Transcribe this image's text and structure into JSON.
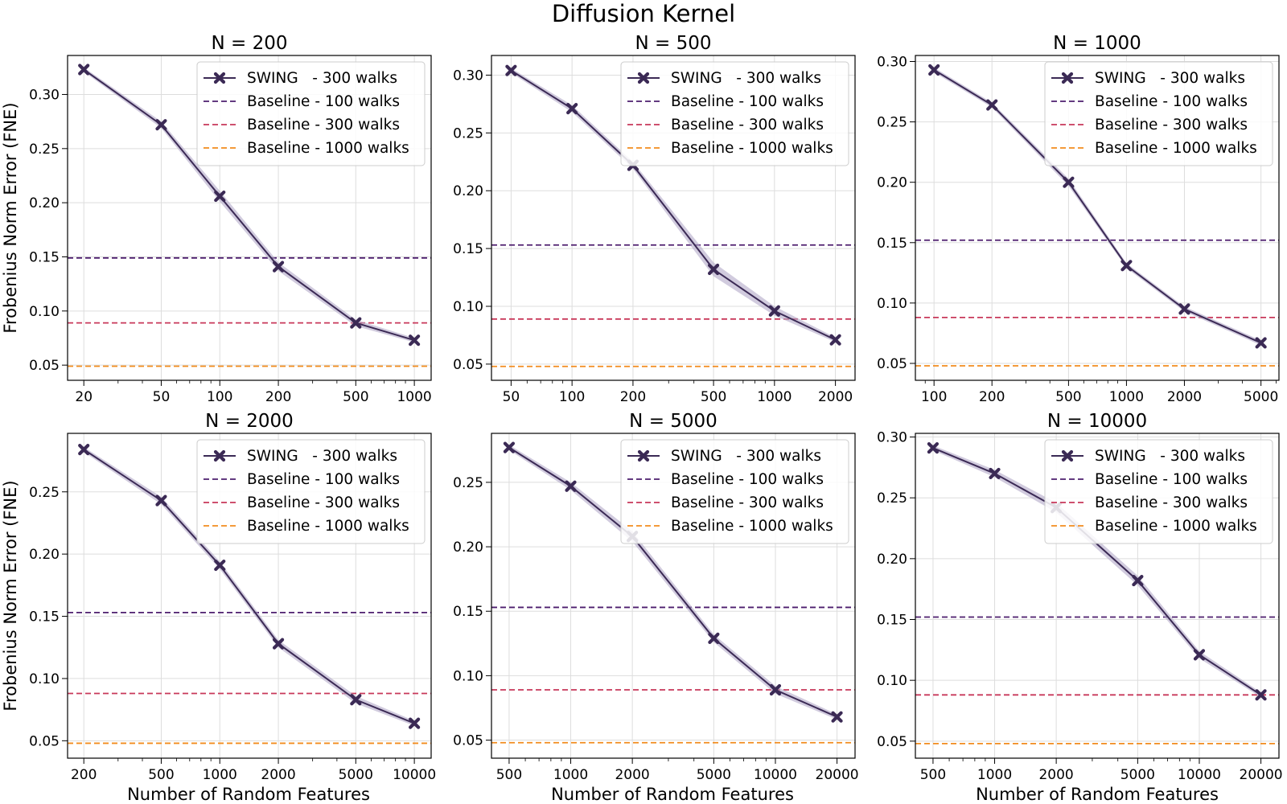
{
  "figure": {
    "title": "Diffusion Kernel",
    "ylabel": "Frobenius Norm Error (FNE)",
    "xlabel": "Number of Random Features"
  },
  "colors": {
    "swing": "#3b2a55",
    "band": "#b3a9c8",
    "baseline_100": "#4d1e6e",
    "baseline_300": "#c8385a",
    "baseline_1000": "#f28c1e",
    "grid": "#dddddd"
  },
  "legend": [
    "SWING   - 300 walks",
    "Baseline - 100 walks",
    "Baseline - 300 walks",
    "Baseline - 1000 walks"
  ],
  "chart_data": [
    {
      "type": "line",
      "title": "N = 200",
      "x": [
        20,
        50,
        100,
        200,
        500,
        1000
      ],
      "xticks": [
        20,
        50,
        100,
        200,
        500,
        1000
      ],
      "xlim": [
        16.5,
        1220
      ],
      "xscale": "log",
      "ylim": [
        0.036,
        0.336
      ],
      "yticks": [
        0.05,
        0.1,
        0.15,
        0.2,
        0.25,
        0.3
      ],
      "series": [
        {
          "name": "SWING   - 300 walks",
          "values": [
            0.323,
            0.272,
            0.206,
            0.141,
            0.089,
            0.073
          ],
          "band": [
            0.002,
            0.003,
            0.005,
            0.004,
            0.003,
            0.002
          ]
        },
        {
          "name": "Baseline - 100 walks",
          "constant": 0.149
        },
        {
          "name": "Baseline - 300 walks",
          "constant": 0.089
        },
        {
          "name": "Baseline - 1000 walks",
          "constant": 0.049
        }
      ]
    },
    {
      "type": "line",
      "title": "N = 500",
      "x": [
        50,
        100,
        200,
        500,
        1000,
        2000
      ],
      "xticks": [
        50,
        100,
        200,
        500,
        1000,
        2000
      ],
      "xlim": [
        40,
        2500
      ],
      "xscale": "log",
      "ylim": [
        0.036,
        0.317
      ],
      "yticks": [
        0.05,
        0.1,
        0.15,
        0.2,
        0.25,
        0.3
      ],
      "series": [
        {
          "name": "SWING   - 300 walks",
          "values": [
            0.304,
            0.271,
            0.222,
            0.132,
            0.096,
            0.071
          ],
          "band": [
            0.002,
            0.003,
            0.003,
            0.006,
            0.004,
            0.002
          ]
        },
        {
          "name": "Baseline - 100 walks",
          "constant": 0.153
        },
        {
          "name": "Baseline - 300 walks",
          "constant": 0.089
        },
        {
          "name": "Baseline - 1000 walks",
          "constant": 0.048
        }
      ]
    },
    {
      "type": "line",
      "title": "N = 1000",
      "x": [
        100,
        200,
        500,
        1000,
        2000,
        5000
      ],
      "xticks": [
        100,
        200,
        500,
        1000,
        2000,
        5000
      ],
      "xlim": [
        80,
        6200
      ],
      "xscale": "log",
      "ylim": [
        0.036,
        0.305
      ],
      "yticks": [
        0.05,
        0.1,
        0.15,
        0.2,
        0.25,
        0.3
      ],
      "series": [
        {
          "name": "SWING   - 300 walks",
          "values": [
            0.293,
            0.264,
            0.2,
            0.131,
            0.095,
            0.067
          ],
          "band": [
            0.002,
            0.002,
            0.003,
            0.002,
            0.002,
            0.002
          ]
        },
        {
          "name": "Baseline - 100 walks",
          "constant": 0.152
        },
        {
          "name": "Baseline - 300 walks",
          "constant": 0.088
        },
        {
          "name": "Baseline - 1000 walks",
          "constant": 0.048
        }
      ]
    },
    {
      "type": "line",
      "title": "N = 2000",
      "x": [
        200,
        500,
        1000,
        2000,
        5000,
        10000
      ],
      "xticks": [
        200,
        500,
        1000,
        2000,
        5000,
        10000
      ],
      "xlim": [
        165,
        12200
      ],
      "xscale": "log",
      "ylim": [
        0.036,
        0.297
      ],
      "yticks": [
        0.05,
        0.1,
        0.15,
        0.2,
        0.25
      ],
      "series": [
        {
          "name": "SWING   - 300 walks",
          "values": [
            0.284,
            0.243,
            0.191,
            0.128,
            0.083,
            0.064
          ],
          "band": [
            0.002,
            0.003,
            0.003,
            0.003,
            0.003,
            0.002
          ]
        },
        {
          "name": "Baseline - 100 walks",
          "constant": 0.153
        },
        {
          "name": "Baseline - 300 walks",
          "constant": 0.088
        },
        {
          "name": "Baseline - 1000 walks",
          "constant": 0.048
        }
      ]
    },
    {
      "type": "line",
      "title": "N = 5000",
      "x": [
        500,
        1000,
        2000,
        5000,
        10000,
        20000
      ],
      "xticks": [
        500,
        1000,
        2000,
        5000,
        10000,
        20000
      ],
      "xlim": [
        410,
        24500
      ],
      "xscale": "log",
      "ylim": [
        0.036,
        0.288
      ],
      "yticks": [
        0.05,
        0.1,
        0.15,
        0.2,
        0.25
      ],
      "series": [
        {
          "name": "SWING   - 300 walks",
          "values": [
            0.277,
            0.247,
            0.208,
            0.129,
            0.089,
            0.068
          ],
          "band": [
            0.002,
            0.003,
            0.004,
            0.003,
            0.003,
            0.002
          ]
        },
        {
          "name": "Baseline - 100 walks",
          "constant": 0.153
        },
        {
          "name": "Baseline - 300 walks",
          "constant": 0.089
        },
        {
          "name": "Baseline - 1000 walks",
          "constant": 0.048
        }
      ]
    },
    {
      "type": "line",
      "title": "N = 10000",
      "x": [
        500,
        1000,
        2000,
        5000,
        10000,
        20000
      ],
      "xticks": [
        500,
        1000,
        2000,
        5000,
        10000,
        20000
      ],
      "xlim": [
        410,
        24500
      ],
      "xscale": "log",
      "ylim": [
        0.036,
        0.303
      ],
      "yticks": [
        0.05,
        0.1,
        0.15,
        0.2,
        0.25,
        0.3
      ],
      "series": [
        {
          "name": "SWING   - 300 walks",
          "values": [
            0.291,
            0.27,
            0.242,
            0.182,
            0.121,
            0.088
          ],
          "band": [
            0.002,
            0.003,
            0.004,
            0.004,
            0.003,
            0.002
          ]
        },
        {
          "name": "Baseline - 100 walks",
          "constant": 0.152
        },
        {
          "name": "Baseline - 300 walks",
          "constant": 0.088
        },
        {
          "name": "Baseline - 1000 walks",
          "constant": 0.048
        }
      ]
    }
  ]
}
